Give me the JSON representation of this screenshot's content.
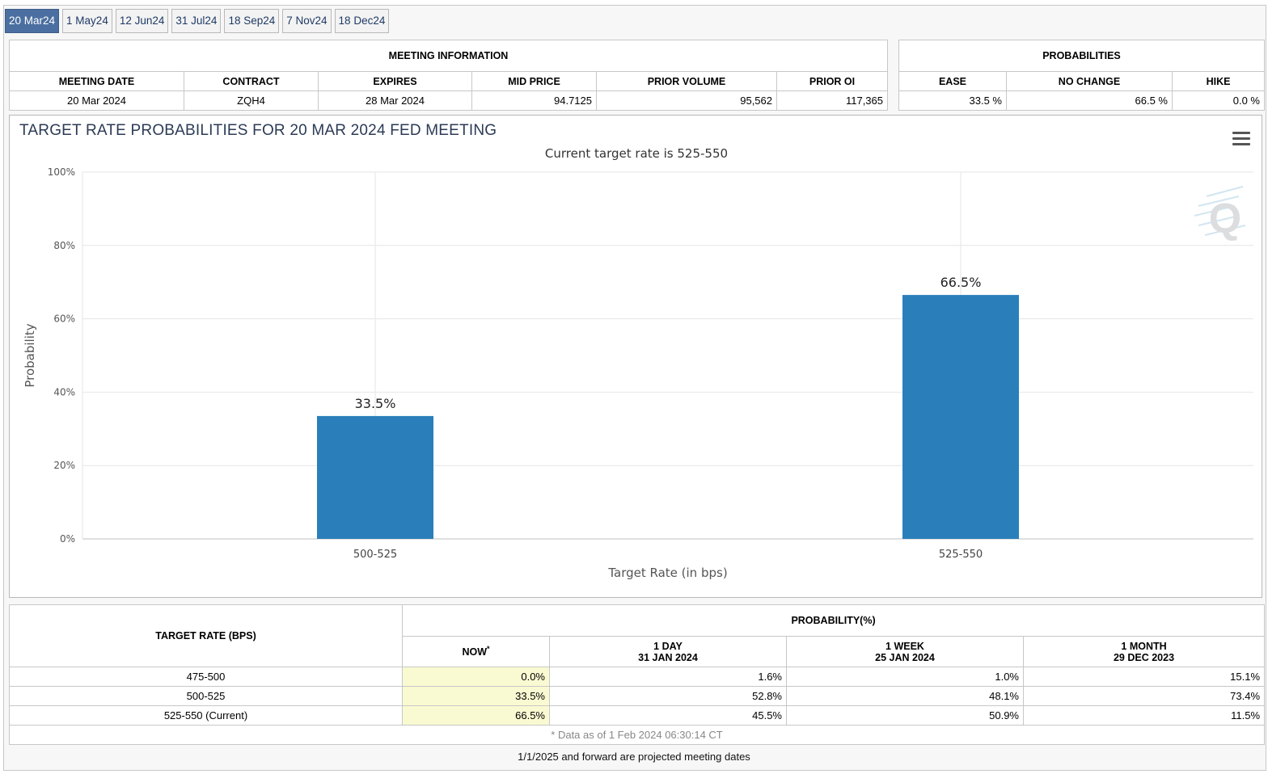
{
  "tabs": [
    "20 Mar24",
    "1 May24",
    "12 Jun24",
    "31 Jul24",
    "18 Sep24",
    "7 Nov24",
    "18 Dec24"
  ],
  "meeting_info": {
    "title": "MEETING INFORMATION",
    "headers": [
      "MEETING DATE",
      "CONTRACT",
      "EXPIRES",
      "MID PRICE",
      "PRIOR VOLUME",
      "PRIOR OI"
    ],
    "values": [
      "20 Mar 2024",
      "ZQH4",
      "28 Mar 2024",
      "94.7125",
      "95,562",
      "117,365"
    ]
  },
  "probabilities": {
    "title": "PROBABILITIES",
    "headers": [
      "EASE",
      "NO CHANGE",
      "HIKE"
    ],
    "values": [
      "33.5 %",
      "66.5 %",
      "0.0 %"
    ]
  },
  "chart": {
    "menu_icon": "hamburger-menu-icon",
    "watermark_icon": "quikstrike-q-logo-icon"
  },
  "chart_data": {
    "type": "bar",
    "title": "TARGET RATE PROBABILITIES FOR 20 MAR 2024 FED MEETING",
    "subtitle": "Current target rate is 525-550",
    "categories": [
      "500-525",
      "525-550"
    ],
    "values": [
      33.5,
      66.5
    ],
    "data_labels": [
      "33.5%",
      "66.5%"
    ],
    "xlabel": "Target Rate (in bps)",
    "ylabel": "Probability",
    "ylim": [
      0,
      100
    ],
    "yticks": [
      "0%",
      "20%",
      "40%",
      "60%",
      "80%",
      "100%"
    ],
    "ytick_values": [
      0,
      20,
      40,
      60,
      80,
      100
    ],
    "grid": true,
    "bar_color": "#2a7fba"
  },
  "bottom_table": {
    "target_header": "TARGET RATE (BPS)",
    "prob_header": "PROBABILITY(%)",
    "col_now": "NOW",
    "col_now_mark": "*",
    "cols": [
      {
        "label": "1 DAY",
        "date": "31 JAN 2024"
      },
      {
        "label": "1 WEEK",
        "date": "25 JAN 2024"
      },
      {
        "label": "1 MONTH",
        "date": "29 DEC 2023"
      }
    ],
    "rows": [
      {
        "rate": "475-500",
        "now": "0.0%",
        "v": [
          "1.6%",
          "1.0%",
          "15.1%"
        ]
      },
      {
        "rate": "500-525",
        "now": "33.5%",
        "v": [
          "52.8%",
          "48.1%",
          "73.4%"
        ]
      },
      {
        "rate": "525-550 (Current)",
        "now": "66.5%",
        "v": [
          "45.5%",
          "50.9%",
          "11.5%"
        ]
      }
    ],
    "footnote": "* Data as of 1 Feb 2024 06:30:14 CT"
  },
  "projected_note": "1/1/2025 and forward are projected meeting dates"
}
